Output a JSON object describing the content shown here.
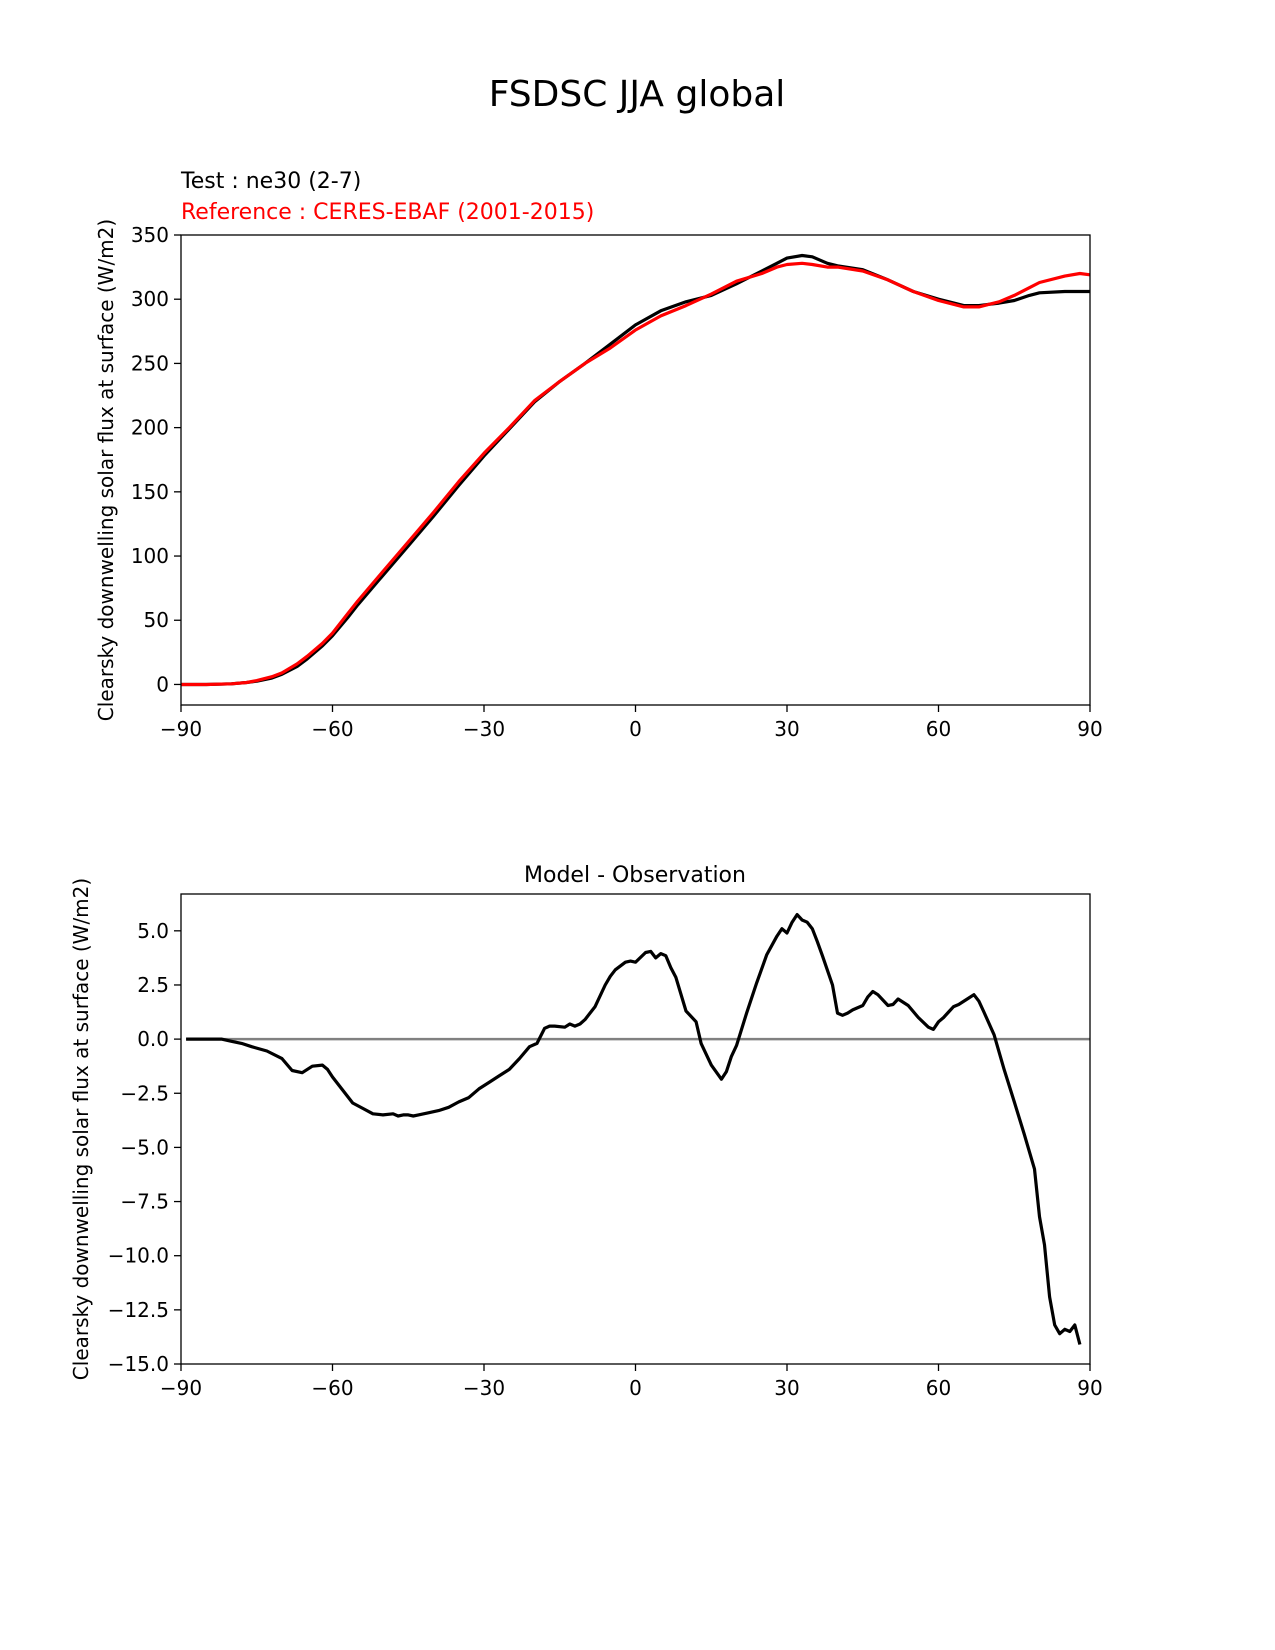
{
  "figure": {
    "title": "FSDSC JJA global"
  },
  "chart_data": [
    {
      "type": "line",
      "test_label": "Test : ne30 (2-7)",
      "reference_label": "Reference : CERES-EBAF (2001-2015)",
      "title": "",
      "xlabel": "",
      "ylabel": "Clearsky downwelling solar flux at surface (W/m2)",
      "xlim": [
        -90,
        90
      ],
      "ylim": [
        -16,
        350
      ],
      "xticks": [
        -90,
        -60,
        -30,
        0,
        30,
        60,
        90
      ],
      "xtick_labels": [
        "−90",
        "−60",
        "−30",
        "0",
        "30",
        "60",
        "90"
      ],
      "yticks": [
        0,
        50,
        100,
        150,
        200,
        250,
        300,
        350
      ],
      "ytick_labels": [
        "0",
        "50",
        "100",
        "150",
        "200",
        "250",
        "300",
        "350"
      ],
      "grid": false,
      "series": [
        {
          "name": "Test : ne30 (2-7)",
          "color": "#000000",
          "x": [
            -90,
            -85,
            -80,
            -77,
            -75,
            -72,
            -70,
            -67,
            -65,
            -62,
            -60,
            -57,
            -55,
            -50,
            -45,
            -40,
            -35,
            -30,
            -25,
            -20,
            -15,
            -10,
            -5,
            0,
            5,
            10,
            15,
            20,
            25,
            28,
            30,
            33,
            35,
            38,
            40,
            45,
            50,
            55,
            60,
            65,
            68,
            70,
            72,
            75,
            78,
            80,
            85,
            90
          ],
          "y": [
            0,
            0,
            0.5,
            1.5,
            2.5,
            5,
            8,
            14,
            20,
            30,
            38,
            52,
            62,
            85,
            108,
            131,
            155,
            178,
            199,
            220,
            236,
            250,
            265,
            280,
            291,
            298,
            303,
            312,
            322,
            328,
            332,
            334,
            333,
            328,
            326,
            323,
            315,
            306,
            300,
            295,
            295,
            296,
            297,
            299,
            303,
            305,
            306,
            306
          ]
        },
        {
          "name": "Reference : CERES-EBAF (2001-2015)",
          "color": "#ff0000",
          "x": [
            -90,
            -85,
            -80,
            -77,
            -75,
            -72,
            -70,
            -67,
            -65,
            -62,
            -60,
            -57,
            -55,
            -50,
            -45,
            -40,
            -35,
            -30,
            -25,
            -20,
            -15,
            -10,
            -5,
            0,
            5,
            10,
            15,
            20,
            25,
            28,
            30,
            33,
            35,
            38,
            40,
            45,
            50,
            55,
            60,
            65,
            68,
            70,
            72,
            75,
            78,
            80,
            85,
            88,
            90
          ],
          "y": [
            0,
            0,
            0.5,
            1.5,
            3,
            6,
            9,
            16,
            22,
            32,
            40,
            55,
            65,
            88,
            111,
            134,
            158,
            180,
            200,
            221,
            236,
            250,
            262,
            276,
            287,
            295,
            304,
            314,
            320,
            325,
            327,
            328,
            327,
            325,
            325,
            322,
            315,
            306,
            299,
            294,
            294,
            296,
            298,
            303,
            309,
            313,
            318,
            320,
            319
          ]
        }
      ]
    },
    {
      "type": "line",
      "title": "Model - Observation",
      "xlabel": "",
      "ylabel": "Clearsky downwelling solar flux at surface (W/m2)",
      "xlim": [
        -90,
        90
      ],
      "ylim": [
        -15,
        6.7
      ],
      "xticks": [
        -90,
        -60,
        -30,
        0,
        30,
        60,
        90
      ],
      "xtick_labels": [
        "−90",
        "−60",
        "−30",
        "0",
        "30",
        "60",
        "90"
      ],
      "yticks": [
        5.0,
        2.5,
        0.0,
        -2.5,
        -5.0,
        -7.5,
        -10.0,
        -12.5,
        -15.0
      ],
      "ytick_labels": [
        "5.0",
        "2.5",
        "0.0",
        "−2.5",
        "−5.0",
        "−7.5",
        "−10.0",
        "−12.5",
        "−15.0"
      ],
      "grid": false,
      "zero_line_color": "#808080",
      "series": [
        {
          "name": "",
          "color": "#000000",
          "x": [
            -89,
            -86,
            -82,
            -80,
            -78,
            -76,
            -73,
            -70,
            -68,
            -66,
            -64,
            -62,
            -61,
            -60,
            -58,
            -56,
            -54,
            -52,
            -50,
            -48,
            -47,
            -46,
            -45,
            -44,
            -43,
            -41,
            -39,
            -37,
            -35,
            -33,
            -31,
            -29,
            -27,
            -25,
            -23,
            -21,
            -19.5,
            -18,
            -17,
            -16,
            -14,
            -13,
            -12,
            -11,
            -10,
            -9,
            -8,
            -6,
            -5,
            -4,
            -2,
            -1,
            0,
            2,
            3,
            4,
            5,
            6,
            7,
            8,
            10,
            12,
            13,
            15,
            17,
            18,
            19,
            20,
            22,
            24,
            26,
            28,
            29,
            30,
            31,
            32,
            33,
            34,
            35,
            36,
            37,
            39,
            40,
            41,
            42,
            43,
            45,
            46,
            47,
            48,
            50,
            51,
            52,
            54,
            56,
            58,
            59,
            60,
            61,
            62,
            63,
            64,
            66,
            67,
            68,
            69,
            71,
            73,
            75,
            77,
            79,
            80,
            81,
            82,
            83,
            84,
            85,
            86,
            87,
            88
          ],
          "y": [
            0,
            0,
            0,
            -0.1,
            -0.2,
            -0.35,
            -0.55,
            -0.9,
            -1.45,
            -1.55,
            -1.25,
            -1.2,
            -1.4,
            -1.75,
            -2.35,
            -2.95,
            -3.2,
            -3.45,
            -3.5,
            -3.45,
            -3.55,
            -3.5,
            -3.5,
            -3.55,
            -3.5,
            -3.4,
            -3.3,
            -3.15,
            -2.9,
            -2.7,
            -2.3,
            -2.0,
            -1.7,
            -1.4,
            -0.9,
            -0.35,
            -0.2,
            0.5,
            0.6,
            0.6,
            0.55,
            0.7,
            0.6,
            0.7,
            0.9,
            1.2,
            1.5,
            2.5,
            2.9,
            3.2,
            3.55,
            3.6,
            3.55,
            4.0,
            4.05,
            3.75,
            3.95,
            3.85,
            3.3,
            2.85,
            1.3,
            0.8,
            -0.2,
            -1.2,
            -1.85,
            -1.5,
            -0.8,
            -0.3,
            1.2,
            2.6,
            3.9,
            4.75,
            5.1,
            4.9,
            5.4,
            5.75,
            5.5,
            5.4,
            5.1,
            4.5,
            3.85,
            2.5,
            1.2,
            1.1,
            1.2,
            1.35,
            1.55,
            1.95,
            2.2,
            2.05,
            1.55,
            1.6,
            1.85,
            1.55,
            1.0,
            0.55,
            0.45,
            0.8,
            1.0,
            1.25,
            1.5,
            1.6,
            1.9,
            2.05,
            1.75,
            1.25,
            0.2,
            -1.4,
            -2.9,
            -4.4,
            -6.0,
            -8.2,
            -9.5,
            -11.9,
            -13.2,
            -13.6,
            -13.4,
            -13.5,
            -13.2,
            -14.1
          ]
        }
      ]
    }
  ]
}
